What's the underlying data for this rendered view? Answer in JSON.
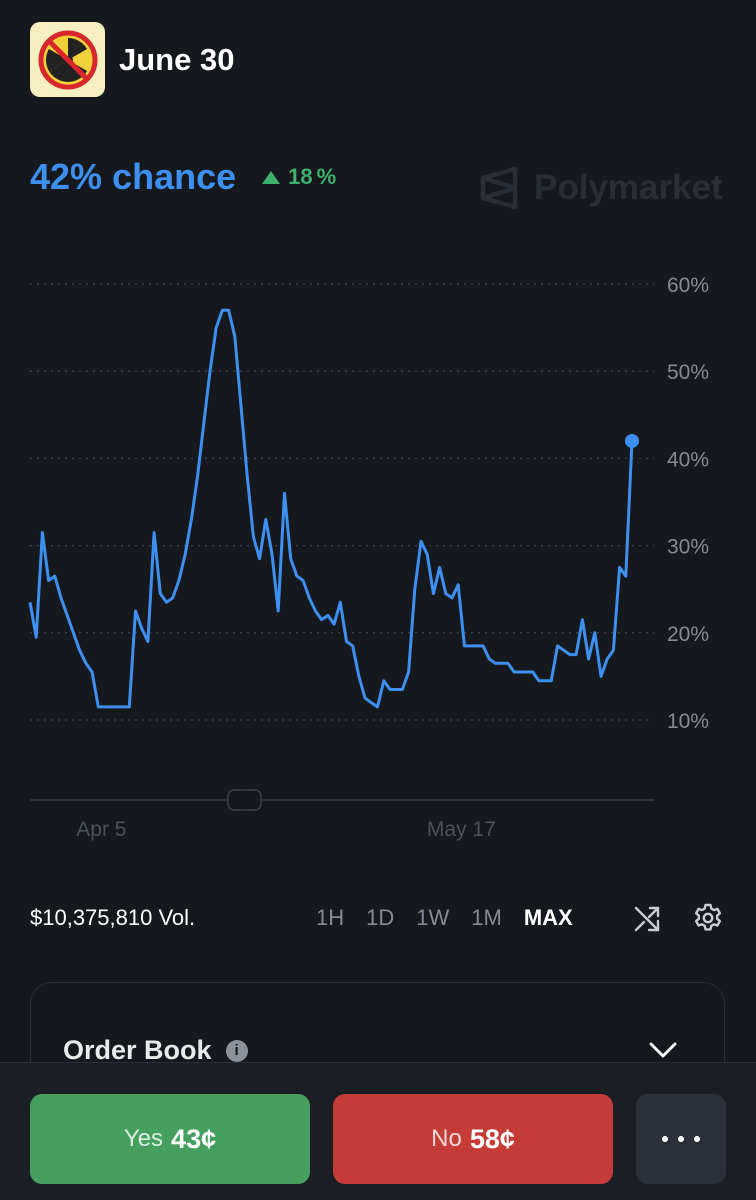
{
  "header": {
    "title": "June 30",
    "icon": "no-nuclear-icon"
  },
  "chance": {
    "value_text": "42% chance",
    "delta_text": "18",
    "delta_unit": "%",
    "delta_direction": "up"
  },
  "watermark": {
    "text": "Polymarket",
    "icon": "polymarket-logo-icon"
  },
  "colors": {
    "line": "#3d8ff0",
    "up": "#3fb16f",
    "yes": "#45a05f",
    "no": "#c53b37",
    "background": "#15181d"
  },
  "chart_data": {
    "type": "line",
    "y_ticks": [
      "60%",
      "50%",
      "40%",
      "30%",
      "20%",
      "10%"
    ],
    "y_tick_values": [
      60,
      50,
      40,
      30,
      20,
      10
    ],
    "ylim": [
      5,
      62
    ],
    "x_tick_labels": [
      "Apr 5",
      "May 17"
    ],
    "x_tick_index": [
      11.5,
      69.5
    ],
    "grid": true,
    "series": [
      {
        "values": [
          23.5,
          19.5,
          31.5,
          26,
          26.5,
          24,
          22,
          20,
          18,
          16.5,
          15.5,
          11.5,
          11.5,
          11.5,
          11.5,
          11.5,
          11.5,
          22.5,
          20.5,
          19,
          31.5,
          24.5,
          23.5,
          24,
          26,
          29,
          33,
          38,
          44,
          50,
          55,
          57,
          57,
          54,
          46,
          38,
          31,
          28.5,
          33,
          29,
          22.5,
          36,
          28.5,
          26.5,
          26,
          24,
          22.5,
          21.5,
          22,
          21,
          23.5,
          19,
          18.5,
          15,
          12.5,
          12,
          11.5,
          14.5,
          13.5,
          13.5,
          13.5,
          15.5,
          25,
          30.5,
          29,
          24.5,
          27.5,
          24.5,
          24,
          25.5,
          18.5,
          18.5,
          18.5,
          18.5,
          17,
          16.5,
          16.5,
          16.5,
          15.5,
          15.5,
          15.5,
          15.5,
          14.5,
          14.5,
          14.5,
          18.5,
          18,
          17.5,
          17.5,
          21.5,
          17,
          20,
          15,
          17,
          18,
          27.5,
          26.5,
          42
        ]
      }
    ]
  },
  "controls": {
    "volume": "$10,375,810 Vol.",
    "ranges": [
      "1H",
      "1D",
      "1W",
      "1M",
      "MAX"
    ],
    "active_range": "MAX"
  },
  "order_book": {
    "title": "Order Book"
  },
  "actions": {
    "yes_label": "Yes",
    "yes_price": "43¢",
    "no_label": "No",
    "no_price": "58¢"
  }
}
